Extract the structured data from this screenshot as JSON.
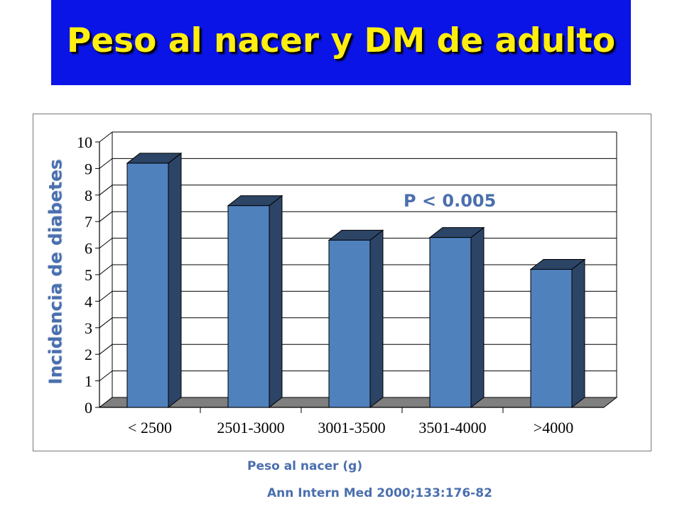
{
  "slide": {
    "title": "Peso al nacer y DM de adulto",
    "citation": "Ann Intern Med 2000;133:176-82"
  },
  "colors": {
    "banner": "#0a14e6",
    "title_text": "#ffee10",
    "bar_front": "#4f81bd",
    "bar_side": "#2c4466",
    "floor": "#7f7f7f",
    "label_blue": "#4a6fae"
  },
  "chart_data": {
    "type": "bar",
    "categories": [
      "< 2500",
      "2501-3000",
      "3001-3500",
      "3501-4000",
      ">4000"
    ],
    "values": [
      9.2,
      7.6,
      6.3,
      6.4,
      5.2
    ],
    "xlabel": "Peso al nacer (g)",
    "ylabel": "Incidencia de diabetes",
    "ylim": [
      0,
      10
    ],
    "yticks": [
      "0",
      "1",
      "2",
      "3",
      "4",
      "5",
      "6",
      "7",
      "8",
      "9",
      "10"
    ],
    "grid": true,
    "style": "3d-column",
    "annotation": "P < 0.005"
  }
}
